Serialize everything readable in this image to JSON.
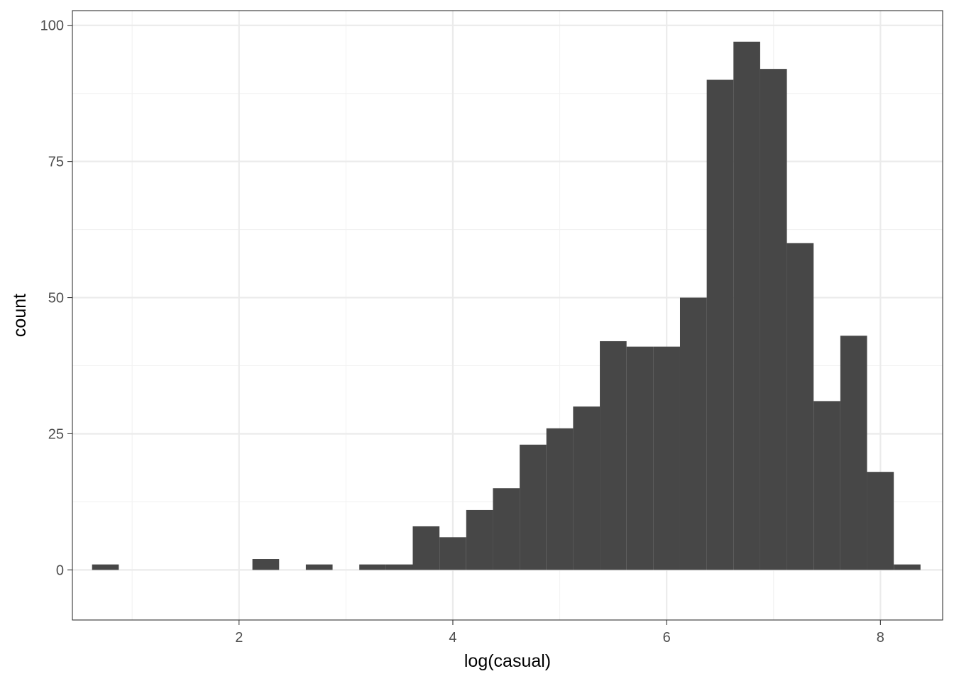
{
  "chart_data": {
    "type": "bar",
    "subtype": "histogram",
    "title": "",
    "xlabel": "log(casual)",
    "ylabel": "count",
    "xlim": [
      0.441,
      8.582
    ],
    "ylim": [
      -9.2,
      102.7
    ],
    "x_ticks": [
      2,
      4,
      6,
      8
    ],
    "x_tick_labels": [
      "2",
      "4",
      "6",
      "8"
    ],
    "x_minor_breaks": [
      1,
      3,
      5,
      7
    ],
    "y_ticks": [
      0,
      25,
      50,
      75,
      100
    ],
    "y_tick_labels": [
      "0",
      "25",
      "50",
      "75",
      "100"
    ],
    "y_minor_breaks": [
      12.5,
      37.5,
      62.5,
      87.5
    ],
    "grid": true,
    "theme": "bw",
    "bin_width": 0.25,
    "bins": [
      {
        "x": 0.75,
        "count": 1
      },
      {
        "x": 1.0,
        "count": 0
      },
      {
        "x": 1.25,
        "count": 0
      },
      {
        "x": 1.5,
        "count": 0
      },
      {
        "x": 1.75,
        "count": 0
      },
      {
        "x": 2.0,
        "count": 0
      },
      {
        "x": 2.25,
        "count": 2
      },
      {
        "x": 2.5,
        "count": 0
      },
      {
        "x": 2.75,
        "count": 1
      },
      {
        "x": 3.0,
        "count": 0
      },
      {
        "x": 3.25,
        "count": 1
      },
      {
        "x": 3.5,
        "count": 1
      },
      {
        "x": 3.75,
        "count": 8
      },
      {
        "x": 4.0,
        "count": 6
      },
      {
        "x": 4.25,
        "count": 11
      },
      {
        "x": 4.5,
        "count": 15
      },
      {
        "x": 4.75,
        "count": 23
      },
      {
        "x": 5.0,
        "count": 26
      },
      {
        "x": 5.25,
        "count": 30
      },
      {
        "x": 5.5,
        "count": 42
      },
      {
        "x": 5.75,
        "count": 41
      },
      {
        "x": 6.0,
        "count": 41
      },
      {
        "x": 6.25,
        "count": 50
      },
      {
        "x": 6.5,
        "count": 90
      },
      {
        "x": 6.75,
        "count": 97
      },
      {
        "x": 7.0,
        "count": 92
      },
      {
        "x": 7.25,
        "count": 60
      },
      {
        "x": 7.5,
        "count": 31
      },
      {
        "x": 7.75,
        "count": 43
      },
      {
        "x": 8.0,
        "count": 18
      },
      {
        "x": 8.25,
        "count": 1
      }
    ],
    "colors": {
      "bar": "#474747",
      "panel_border": "#333333",
      "grid_major": "#ebebeb",
      "grid_minor": "#f2f2f2",
      "tick": "#333333",
      "tick_label": "#4d4d4d",
      "background": "#ffffff"
    }
  }
}
